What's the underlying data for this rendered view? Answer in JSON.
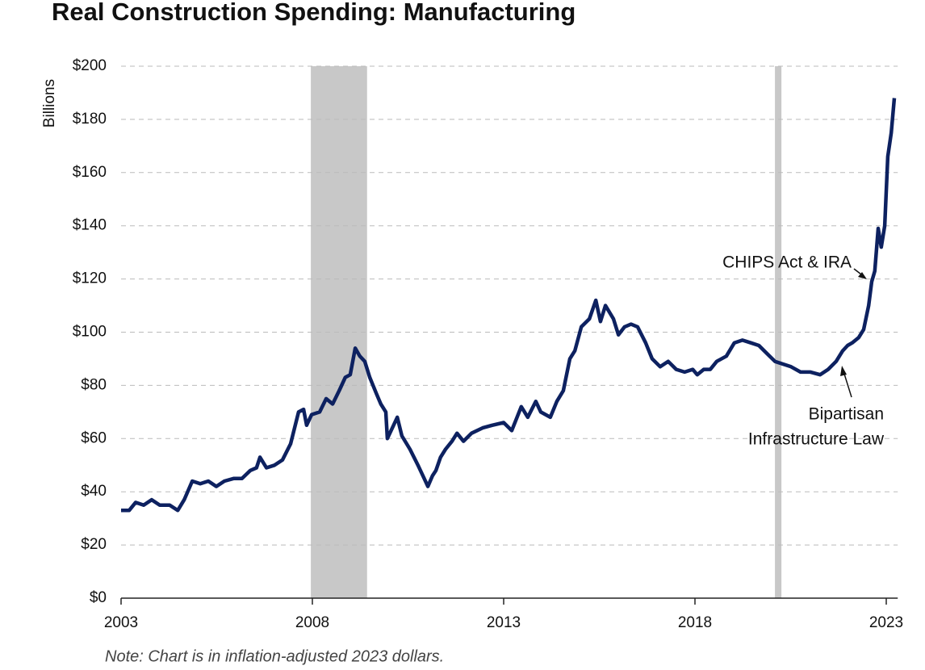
{
  "chart_data": {
    "type": "line",
    "title": "Real Construction Spending: Manufacturing",
    "y_label": "Billions",
    "note": "Note: Chart is in inflation-adjusted 2023 dollars.",
    "annotations": [
      "CHIPS Act & IRA",
      "Bipartisan",
      "Infrastructure Law"
    ],
    "shaded_regions": [
      [
        2007.96,
        2009.43
      ],
      [
        2020.09,
        2020.26
      ]
    ],
    "shade_color": "#c8c8c8",
    "grid": true,
    "xlim": [
      2003,
      2023.3
    ],
    "xticks": [
      2003,
      2008,
      2013,
      2018,
      2023
    ],
    "ylim": [
      0,
      200
    ],
    "yticks": [
      {
        "value": 0,
        "label": "$0"
      },
      {
        "value": 20,
        "label": "$20"
      },
      {
        "value": 40,
        "label": "$40"
      },
      {
        "value": 60,
        "label": "$60"
      },
      {
        "value": 80,
        "label": "$80"
      },
      {
        "value": 100,
        "label": "$100"
      },
      {
        "value": 120,
        "label": "$120"
      },
      {
        "value": 140,
        "label": "$140"
      },
      {
        "value": 160,
        "label": "$160"
      },
      {
        "value": 180,
        "label": "$180"
      },
      {
        "value": 200,
        "label": "$200"
      }
    ],
    "x": [
      2003.0,
      2003.21,
      2003.38,
      2003.59,
      2003.8,
      2004.01,
      2004.27,
      2004.48,
      2004.65,
      2004.86,
      2005.07,
      2005.28,
      2005.49,
      2005.7,
      2005.95,
      2006.16,
      2006.38,
      2006.54,
      2006.63,
      2006.8,
      2007.01,
      2007.22,
      2007.43,
      2007.64,
      2007.77,
      2007.85,
      2007.98,
      2008.19,
      2008.36,
      2008.53,
      2008.7,
      2008.86,
      2008.99,
      2009.12,
      2009.24,
      2009.37,
      2009.5,
      2009.67,
      2009.79,
      2009.92,
      2009.96,
      2010.09,
      2010.22,
      2010.34,
      2010.55,
      2010.76,
      2010.89,
      2011.02,
      2011.14,
      2011.23,
      2011.35,
      2011.48,
      2011.65,
      2011.78,
      2011.95,
      2012.16,
      2012.45,
      2012.7,
      2013.0,
      2013.21,
      2013.46,
      2013.63,
      2013.84,
      2013.97,
      2014.22,
      2014.39,
      2014.56,
      2014.73,
      2014.86,
      2015.03,
      2015.24,
      2015.41,
      2015.53,
      2015.66,
      2015.87,
      2016.0,
      2016.16,
      2016.33,
      2016.5,
      2016.71,
      2016.88,
      2017.09,
      2017.3,
      2017.51,
      2017.73,
      2017.94,
      2018.06,
      2018.23,
      2018.4,
      2018.57,
      2018.82,
      2019.03,
      2019.24,
      2019.46,
      2019.67,
      2019.88,
      2020.09,
      2020.3,
      2020.51,
      2020.76,
      2021.02,
      2021.27,
      2021.48,
      2021.69,
      2021.86,
      2021.99,
      2022.11,
      2022.28,
      2022.41,
      2022.54,
      2022.62,
      2022.7,
      2022.79,
      2022.87,
      2022.96,
      2023.04,
      2023.13,
      2023.21
    ],
    "series": [
      {
        "name": "Real construction spending",
        "color": "#0d2160",
        "values": [
          33,
          33,
          36,
          35,
          37,
          35,
          35,
          33,
          37,
          44,
          43,
          44,
          42,
          44,
          45,
          45,
          48,
          49,
          53,
          49,
          50,
          52,
          58,
          70,
          71,
          65,
          69,
          70,
          75,
          73,
          78,
          83,
          84,
          94,
          91,
          89,
          83,
          77,
          73,
          70,
          60,
          64,
          68,
          61,
          56,
          50,
          46,
          42,
          46,
          48,
          53,
          56,
          59,
          62,
          59,
          62,
          64,
          65,
          66,
          63,
          72,
          68,
          74,
          70,
          68,
          74,
          78,
          90,
          93,
          102,
          105,
          112,
          104,
          110,
          105,
          99,
          102,
          103,
          102,
          96,
          90,
          87,
          89,
          86,
          85,
          86,
          84,
          86,
          86,
          89,
          91,
          96,
          97,
          96,
          95,
          92,
          89,
          88,
          87,
          85,
          85,
          84,
          86,
          89,
          93,
          95,
          96,
          98,
          101,
          110,
          119,
          123,
          139,
          132,
          140,
          166,
          175,
          188
        ]
      }
    ]
  }
}
